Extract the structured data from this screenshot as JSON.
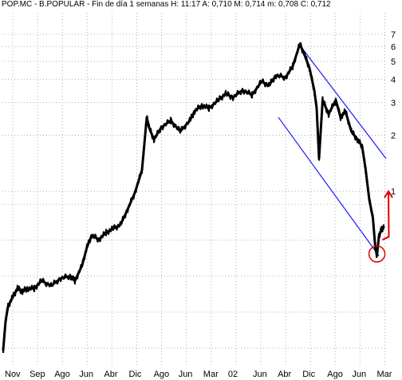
{
  "title": "POP.MC - B.POPULAR - Fin de día 1 semanas H: 11:17 A: 0,710 M: 0,714 m: 0,708 C: 0,712",
  "colors": {
    "background": "#ffffff",
    "grid": "#b0b0b0",
    "price": "#000000",
    "channel": "#1a1aff",
    "annotation": "#e00000"
  },
  "chart_data": {
    "type": "line",
    "title": "POP.MC - B.POPULAR - Fin de día 1 semanas H: 11:17 A: 0,710 M: 0,714 m: 0,708 C: 0,712",
    "xlabel": "",
    "ylabel": "",
    "yscale": "log",
    "ylim": [
      0.12,
      7.2
    ],
    "grid": true,
    "y_ticks": [
      {
        "label": "7",
        "value": 7
      },
      {
        "label": "6",
        "value": 6
      },
      {
        "label": "5",
        "value": 5
      },
      {
        "label": "4",
        "value": 4
      },
      {
        "label": "3",
        "value": 3
      },
      {
        "label": "2",
        "value": 2
      },
      {
        "label": "1",
        "value": 1
      }
    ],
    "x_ticks": [
      {
        "label": "Nov",
        "idx": 0
      },
      {
        "label": "Sep",
        "idx": 1
      },
      {
        "label": "Ago",
        "idx": 2
      },
      {
        "label": "Jun",
        "idx": 3
      },
      {
        "label": "Abr",
        "idx": 4
      },
      {
        "label": "Dic",
        "idx": 5
      },
      {
        "label": "Ago",
        "idx": 6
      },
      {
        "label": "Jun",
        "idx": 7
      },
      {
        "label": "Mar",
        "idx": 8
      },
      {
        "label": "02",
        "idx": 9
      },
      {
        "label": "Jun",
        "idx": 10
      },
      {
        "label": "Abr",
        "idx": 11
      },
      {
        "label": "Dic",
        "idx": 12
      },
      {
        "label": "Ago",
        "idx": 13
      },
      {
        "label": "Jun",
        "idx": 14
      },
      {
        "label": "Mar",
        "idx": 15
      }
    ],
    "series": [
      {
        "points": [
          [
            0.0,
            0.14
          ],
          [
            0.1,
            0.2
          ],
          [
            0.2,
            0.24
          ],
          [
            0.4,
            0.27
          ],
          [
            0.6,
            0.3
          ],
          [
            0.8,
            0.29
          ],
          [
            1.0,
            0.3
          ],
          [
            1.3,
            0.3
          ],
          [
            1.6,
            0.33
          ],
          [
            2.0,
            0.31
          ],
          [
            2.4,
            0.34
          ],
          [
            2.8,
            0.35
          ],
          [
            3.0,
            0.33
          ],
          [
            3.3,
            0.4
          ],
          [
            3.5,
            0.5
          ],
          [
            3.7,
            0.58
          ],
          [
            4.0,
            0.55
          ],
          [
            4.3,
            0.6
          ],
          [
            4.6,
            0.63
          ],
          [
            4.9,
            0.66
          ],
          [
            5.2,
            0.8
          ],
          [
            5.5,
            0.98
          ],
          [
            5.8,
            1.3
          ],
          [
            6.0,
            2.5
          ],
          [
            6.1,
            2.2
          ],
          [
            6.3,
            1.9
          ],
          [
            6.6,
            2.2
          ],
          [
            7.0,
            2.4
          ],
          [
            7.4,
            2.1
          ],
          [
            7.8,
            2.4
          ],
          [
            8.0,
            2.7
          ],
          [
            8.3,
            2.9
          ],
          [
            8.6,
            2.8
          ],
          [
            9.0,
            3.1
          ],
          [
            9.3,
            3.35
          ],
          [
            9.6,
            3.2
          ],
          [
            10.0,
            3.5
          ],
          [
            10.4,
            3.3
          ],
          [
            10.8,
            3.9
          ],
          [
            11.1,
            3.7
          ],
          [
            11.4,
            4.2
          ],
          [
            11.8,
            4.1
          ],
          [
            12.1,
            4.7
          ],
          [
            12.4,
            6.2
          ],
          [
            12.6,
            5.4
          ],
          [
            12.8,
            4.6
          ],
          [
            13.0,
            3.5
          ],
          [
            13.1,
            2.8
          ],
          [
            13.2,
            1.5
          ],
          [
            13.35,
            3.1
          ],
          [
            13.6,
            2.6
          ],
          [
            13.9,
            3.1
          ],
          [
            14.1,
            2.5
          ],
          [
            14.3,
            2.7
          ],
          [
            14.55,
            2.1
          ],
          [
            14.8,
            1.9
          ],
          [
            15.0,
            1.75
          ],
          [
            15.15,
            1.3
          ],
          [
            15.3,
            0.9
          ],
          [
            15.45,
            0.72
          ],
          [
            15.55,
            0.5
          ],
          [
            15.62,
            0.45
          ],
          [
            15.7,
            0.57
          ],
          [
            15.8,
            0.62
          ],
          [
            15.9,
            0.64
          ]
        ]
      }
    ],
    "channel_lines": [
      [
        [
          12.4,
          6.1
        ],
        [
          16.0,
          1.5
        ]
      ],
      [
        [
          11.5,
          2.5
        ],
        [
          15.7,
          0.45
        ]
      ]
    ],
    "annotations": {
      "circle": {
        "idx": 15.62,
        "value": 0.46
      },
      "arrow": {
        "from": [
          15.85,
          0.57
        ],
        "to": [
          15.9,
          1.0
        ]
      }
    }
  }
}
